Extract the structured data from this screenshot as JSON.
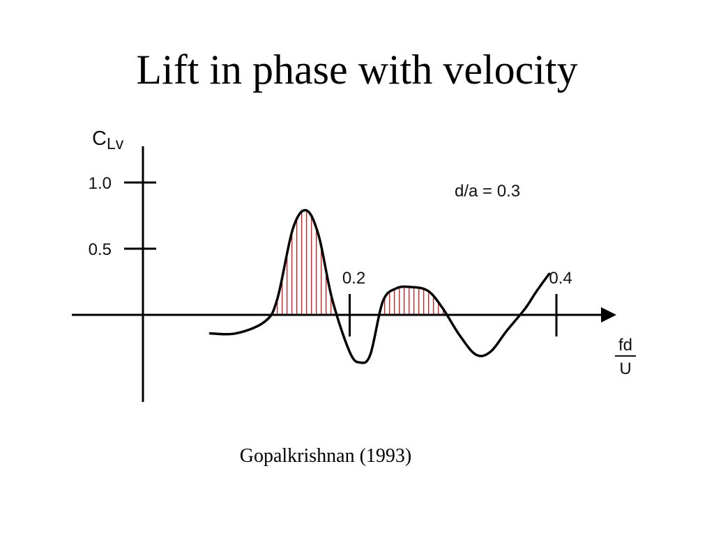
{
  "slide": {
    "title": "Lift in phase with velocity",
    "caption": "Gopalkrishnan (1993)"
  },
  "chart_data": {
    "type": "line",
    "ylabel": {
      "main": "C",
      "sub": "Lv"
    },
    "xlabel": {
      "numerator": "fd",
      "denominator": "U"
    },
    "annotation": "d/a = 0.3",
    "x_ticks": [
      {
        "value": 0.2,
        "label": "0.2"
      },
      {
        "value": 0.4,
        "label": "0.4"
      }
    ],
    "y_ticks": [
      {
        "value": 0.5,
        "label": "0.5"
      },
      {
        "value": 1.0,
        "label": "1.0"
      }
    ],
    "series": [
      {
        "color": "#000000",
        "shade_positive": true,
        "shade_color": "#cc0000",
        "x": [
          0.065,
          0.09,
          0.118,
          0.13,
          0.145,
          0.158,
          0.17,
          0.183,
          0.2,
          0.21,
          0.22,
          0.232,
          0.245,
          0.26,
          0.276,
          0.29,
          0.306,
          0.322,
          0.336,
          0.352,
          0.37,
          0.38,
          0.393
        ],
        "y": [
          -0.14,
          -0.14,
          -0.05,
          0.12,
          0.65,
          0.79,
          0.6,
          0.12,
          -0.28,
          -0.36,
          -0.3,
          0.1,
          0.2,
          0.21,
          0.18,
          0.05,
          -0.15,
          -0.3,
          -0.28,
          -0.12,
          0.05,
          0.17,
          0.31
        ]
      }
    ]
  }
}
